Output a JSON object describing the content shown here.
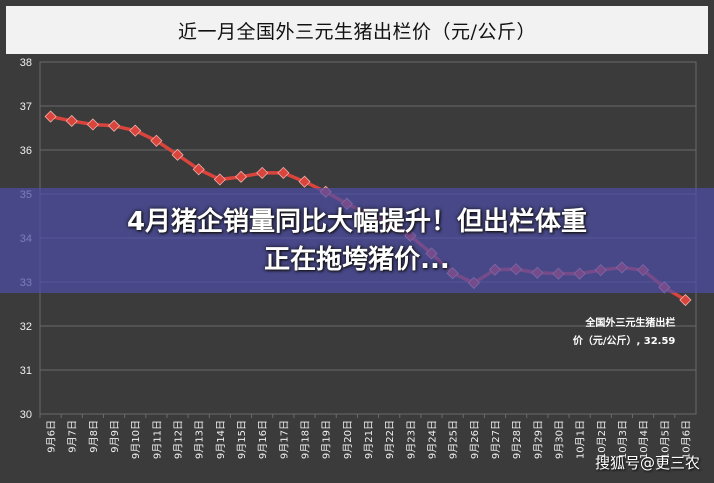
{
  "chart_data": {
    "type": "line",
    "title": "近一月全国外三元生猪出栏价（元/公斤）",
    "categories": [
      "9月6日",
      "9月7日",
      "9月8日",
      "9月9日",
      "9月10日",
      "9月11日",
      "9月12日",
      "9月13日",
      "9月14日",
      "9月15日",
      "9月16日",
      "9月17日",
      "9月18日",
      "9月19日",
      "9月20日",
      "9月21日",
      "9月22日",
      "9月23日",
      "9月24日",
      "9月25日",
      "9月26日",
      "9月27日",
      "9月28日",
      "9月29日",
      "9月30日",
      "10月1日",
      "10月2日",
      "10月3日",
      "10月4日",
      "10月5日",
      "10月6日"
    ],
    "series": [
      {
        "name": "全国外三元生猪出栏价（元/公斤）",
        "values": [
          36.76,
          36.66,
          36.58,
          36.55,
          36.44,
          36.21,
          35.89,
          35.56,
          35.33,
          35.39,
          35.48,
          35.48,
          35.28,
          35.05,
          34.78,
          34.55,
          34.35,
          34.05,
          33.65,
          33.2,
          32.98,
          33.28,
          33.29,
          33.21,
          33.19,
          33.19,
          33.27,
          33.33,
          33.27,
          32.88,
          32.59
        ]
      }
    ],
    "ylim": [
      30,
      38
    ],
    "yticks": [
      30,
      31,
      32,
      33,
      34,
      35,
      36,
      37,
      38
    ],
    "grid": true,
    "end_label": {
      "line1": "全国外三元生猪出栏",
      "line2": "价（元/公斤）, 32.59"
    },
    "colors": {
      "line": "#d9443c",
      "marker": "#d9443c",
      "plot_bg": "#3b3b3b",
      "grid": "#6a6a6a"
    }
  },
  "overlay": {
    "headline_line1": "4月猪企销量同比大幅提升！但出栏体重",
    "headline_line2": "正在拖垮猪价..."
  },
  "watermark": "搜狐号@更三农"
}
